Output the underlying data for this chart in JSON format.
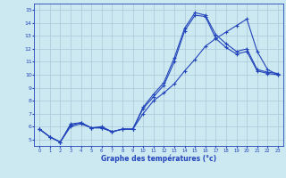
{
  "xlabel": "Graphe des températures (°c)",
  "x": [
    0,
    1,
    2,
    3,
    4,
    5,
    6,
    7,
    8,
    9,
    10,
    11,
    12,
    13,
    14,
    15,
    16,
    17,
    18,
    19,
    20,
    21,
    22,
    23
  ],
  "line1": [
    5.8,
    5.2,
    4.8,
    6.2,
    6.3,
    5.9,
    5.9,
    5.6,
    5.8,
    5.8,
    7.5,
    8.5,
    9.4,
    11.3,
    13.6,
    14.8,
    14.6,
    13.1,
    12.4,
    11.8,
    12.0,
    10.4,
    10.2,
    10.1
  ],
  "line2": [
    5.8,
    5.2,
    4.8,
    6.1,
    6.3,
    5.9,
    5.9,
    5.6,
    5.8,
    5.8,
    7.4,
    8.3,
    9.2,
    11.0,
    13.4,
    14.6,
    14.5,
    12.8,
    12.1,
    11.6,
    11.8,
    10.3,
    10.1,
    10.0
  ],
  "line3": [
    5.8,
    5.2,
    4.8,
    6.0,
    6.2,
    5.9,
    6.0,
    5.6,
    5.8,
    5.8,
    7.0,
    8.0,
    8.6,
    9.3,
    10.3,
    11.2,
    12.2,
    12.8,
    13.3,
    13.8,
    14.3,
    11.8,
    10.4,
    10.0
  ],
  "line_color": "#2244bb",
  "bg_color": "#cce8f0",
  "grid_color": "#aac8d8",
  "ylim": [
    4.5,
    15.5
  ],
  "xlim": [
    -0.5,
    23.5
  ],
  "yticks": [
    5,
    6,
    7,
    8,
    9,
    10,
    11,
    12,
    13,
    14,
    15
  ],
  "xticks": [
    0,
    1,
    2,
    3,
    4,
    5,
    6,
    7,
    8,
    9,
    10,
    11,
    12,
    13,
    14,
    15,
    16,
    17,
    18,
    19,
    20,
    21,
    22,
    23
  ],
  "figsize": [
    3.2,
    2.0
  ],
  "dpi": 100
}
